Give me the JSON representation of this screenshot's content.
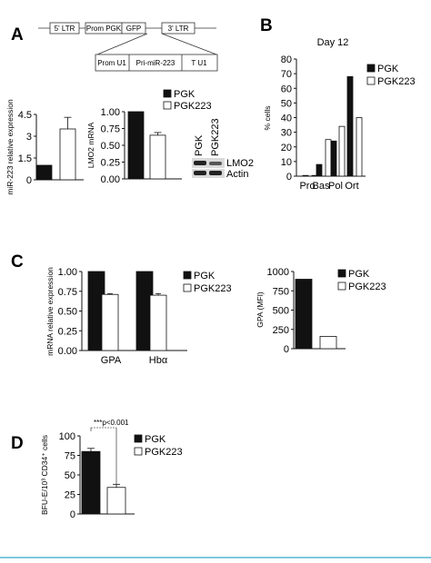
{
  "colors": {
    "panel_label": "#2aa8c8",
    "dark_bar": "#111111",
    "light_bar": "#ffffff",
    "rule": "#7dc8dc"
  },
  "panel_labels": {
    "A": "A",
    "B": "B",
    "C": "C",
    "D": "D"
  },
  "diagram": {
    "top_boxes": [
      "5' LTR",
      "Prom PGK",
      "GFP",
      "3' LTR"
    ],
    "bottom_boxes": [
      "Prom U1",
      "Pri-miR-223",
      "T U1"
    ]
  },
  "western": {
    "lane_labels": [
      "PGK",
      "PGK223"
    ],
    "band_labels": [
      "LMO2",
      "Actin"
    ]
  },
  "chart_data": [
    {
      "panel": "A",
      "type": "bar",
      "ylabel": "miR-223 relative expression",
      "yticks": [
        "0",
        "1.5",
        "3",
        "4.5"
      ],
      "ylim": [
        0,
        4.5
      ],
      "series": [
        {
          "values": [
            1.0
          ],
          "error": [
            0
          ],
          "fill": "dark"
        },
        {
          "values": [
            3.5
          ],
          "error": [
            0.8
          ],
          "fill": "light"
        }
      ]
    },
    {
      "panel": "A",
      "type": "bar",
      "ylabel": "LMO2 mRNA",
      "yticks": [
        "0.00",
        "0.25",
        "0.50",
        "0.75",
        "1.00"
      ],
      "ylim": [
        0,
        1.0
      ],
      "series": [
        {
          "name": "PGK",
          "values": [
            1.0
          ],
          "error": [
            0
          ],
          "fill": "dark"
        },
        {
          "name": "PGK223",
          "values": [
            0.65
          ],
          "error": [
            0.04
          ],
          "fill": "light"
        }
      ],
      "legend": "top-right"
    },
    {
      "panel": "B",
      "type": "bar",
      "title": "Day 12",
      "ylabel": "% cells",
      "categories": [
        "Pro",
        "Bas",
        "Pol",
        "Ort"
      ],
      "yticks": [
        "0",
        "10",
        "20",
        "30",
        "40",
        "50",
        "60",
        "70",
        "80"
      ],
      "ylim": [
        0,
        80
      ],
      "series": [
        {
          "name": "PGK",
          "values": [
            0.5,
            8,
            24,
            68
          ],
          "fill": "dark"
        },
        {
          "name": "PGK223",
          "values": [
            0.5,
            25,
            34,
            40
          ],
          "fill": "light"
        }
      ],
      "legend": "top-right"
    },
    {
      "panel": "C",
      "type": "bar",
      "ylabel": "mRNA relative expression",
      "categories": [
        "GPA",
        "Hbα"
      ],
      "yticks": [
        "0.00",
        "0.25",
        "0.50",
        "0.75",
        "1.00"
      ],
      "ylim": [
        0,
        1.0
      ],
      "series": [
        {
          "name": "PGK",
          "values": [
            1.0,
            1.0
          ],
          "error": [
            0,
            0
          ],
          "fill": "dark"
        },
        {
          "name": "PGK223",
          "values": [
            0.71,
            0.7
          ],
          "error": [
            0.01,
            0.02
          ],
          "fill": "light"
        }
      ],
      "legend": "top-right"
    },
    {
      "panel": "C",
      "type": "bar",
      "ylabel": "GPA (MFI)",
      "yticks": [
        "0",
        "250",
        "500",
        "750",
        "1000"
      ],
      "ylim": [
        0,
        1000
      ],
      "series": [
        {
          "name": "PGK",
          "values": [
            900
          ],
          "fill": "dark"
        },
        {
          "name": "PGK223",
          "values": [
            160
          ],
          "fill": "light"
        }
      ],
      "legend": "top-right"
    },
    {
      "panel": "D",
      "type": "bar",
      "ylabel": "BFU-E/10³ CD34⁺ cells",
      "yticks": [
        "0",
        "25",
        "50",
        "75",
        "100"
      ],
      "ylim": [
        0,
        100
      ],
      "series": [
        {
          "name": "PGK",
          "values": [
            80
          ],
          "error": [
            4
          ],
          "fill": "dark"
        },
        {
          "name": "PGK223",
          "values": [
            34
          ],
          "error": [
            4
          ],
          "fill": "light"
        }
      ],
      "annotation": "***p<0.001",
      "legend": "top-right"
    }
  ]
}
